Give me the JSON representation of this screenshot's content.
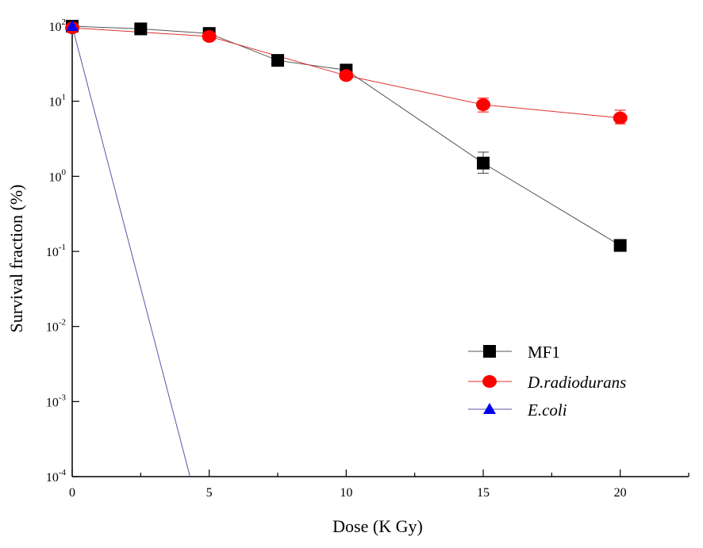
{
  "chart_data": {
    "type": "line",
    "title": "",
    "xlabel": "Dose (K Gy)",
    "ylabel": "Survival fraction (%)",
    "xlim": [
      0,
      22.5
    ],
    "ylim": [
      0.0001,
      100
    ],
    "yscale": "log",
    "grid": false,
    "legend_position": "bottom-right",
    "x_ticks": [
      0,
      5,
      10,
      15,
      20
    ],
    "x_tick_labels": [
      "0",
      "5",
      "10",
      "15",
      "20"
    ],
    "y_ticks": [
      0.0001,
      0.001,
      0.01,
      0.1,
      1,
      10,
      100
    ],
    "y_tick_labels": [
      {
        "base": "10",
        "exp": "-4"
      },
      {
        "base": "10",
        "exp": "-3"
      },
      {
        "base": "10",
        "exp": "-2"
      },
      {
        "base": "10",
        "exp": "-1"
      },
      {
        "base": "10",
        "exp": "0"
      },
      {
        "base": "10",
        "exp": "1"
      },
      {
        "base": "10",
        "exp": "2"
      }
    ],
    "series": [
      {
        "name": "MF1",
        "italic": false,
        "color": "#000000",
        "line_color": "#555555",
        "marker": "square",
        "x": [
          0,
          2.5,
          5,
          7.5,
          10,
          15,
          20
        ],
        "y": [
          100,
          92,
          80,
          35,
          26,
          1.5,
          0.12
        ],
        "err": [
          null,
          null,
          null,
          null,
          null,
          [
            1.1,
            2.1
          ],
          null
        ]
      },
      {
        "name": "D.radiodurans",
        "italic": true,
        "color": "#ff0000",
        "line_color": "#e03030",
        "marker": "circle",
        "x": [
          0,
          5,
          10,
          15,
          20
        ],
        "y": [
          95,
          73,
          22,
          9,
          6
        ],
        "err": [
          null,
          null,
          null,
          [
            7.2,
            11
          ],
          [
            5.0,
            7.6
          ]
        ]
      },
      {
        "name": "E.coli",
        "italic": true,
        "color": "#0000ee",
        "line_color": "#5555aa",
        "marker": "triangle",
        "x": [
          0,
          4.3
        ],
        "y": [
          100,
          0.0001
        ],
        "err": [
          null,
          null
        ]
      }
    ]
  }
}
